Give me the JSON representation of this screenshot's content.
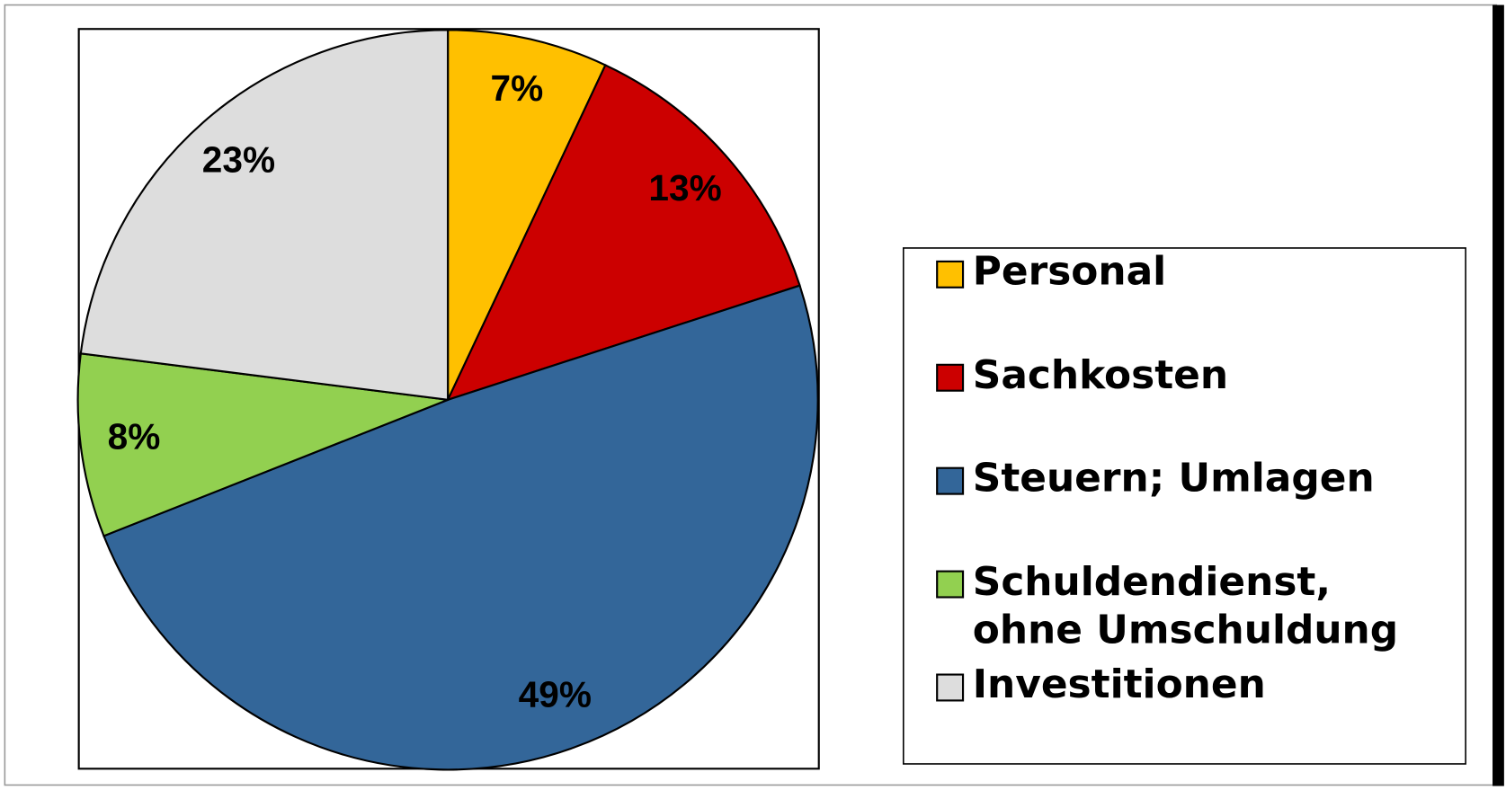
{
  "chart_data": {
    "type": "pie",
    "categories": [
      "Personal",
      "Sachkosten",
      "Steuern; Umlagen",
      "Schuldendienst,\nohne Umschuldung",
      "Investitionen"
    ],
    "values": [
      7,
      13,
      49,
      8,
      23
    ],
    "value_labels": [
      "7%",
      "13%",
      "49%",
      "8%",
      "23%"
    ],
    "colors": [
      "#ffc000",
      "#cc0000",
      "#336699",
      "#92d050",
      "#dddddd"
    ],
    "legend": "right"
  }
}
